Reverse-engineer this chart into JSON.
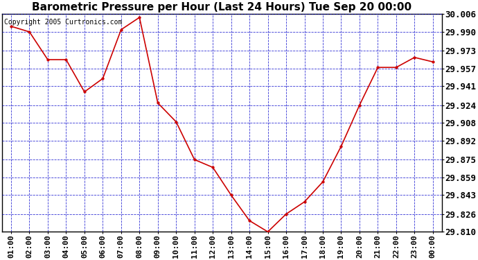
{
  "title": "Barometric Pressure per Hour (Last 24 Hours) Tue Sep 20 00:00",
  "copyright": "Copyright 2005 Curtronics.com",
  "background_color": "#ffffff",
  "plot_bg_color": "#ffffff",
  "line_color": "#cc0000",
  "marker_color": "#cc0000",
  "grid_color": "#0000cc",
  "ytick_labels": [
    "29.810",
    "29.826",
    "29.843",
    "29.859",
    "29.875",
    "29.892",
    "29.908",
    "29.924",
    "29.941",
    "29.957",
    "29.973",
    "29.990",
    "30.006"
  ],
  "ylim": [
    29.81,
    30.006
  ],
  "hours": [
    "01:00",
    "02:00",
    "03:00",
    "04:00",
    "05:00",
    "06:00",
    "07:00",
    "08:00",
    "09:00",
    "10:00",
    "11:00",
    "12:00",
    "13:00",
    "14:00",
    "15:00",
    "16:00",
    "17:00",
    "18:00",
    "19:00",
    "20:00",
    "21:00",
    "22:00",
    "23:00",
    "00:00"
  ],
  "values": [
    29.995,
    29.99,
    29.965,
    29.965,
    29.936,
    29.948,
    29.992,
    30.003,
    29.926,
    29.909,
    29.875,
    29.868,
    29.843,
    29.82,
    29.81,
    29.826,
    29.837,
    29.855,
    29.887,
    29.924,
    29.958,
    29.958,
    29.967,
    29.963
  ],
  "title_fontsize": 11,
  "tick_fontsize": 8,
  "ytick_fontsize": 9,
  "copyright_fontsize": 7
}
